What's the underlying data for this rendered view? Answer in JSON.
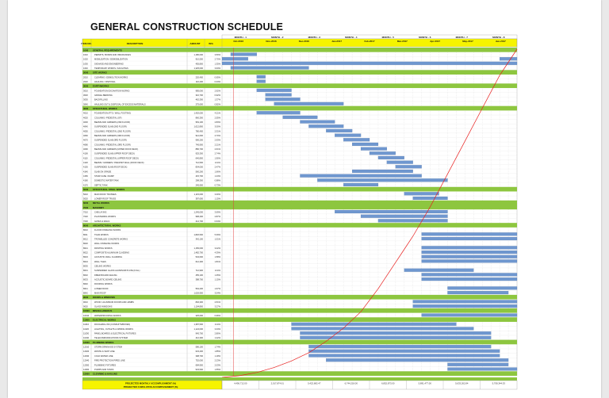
{
  "page": {
    "title": "GENERAL CONSTRUCTION SCHEDULE"
  },
  "chart_data": {
    "type": "gantt",
    "title": "GENERAL CONSTRUCTION SCHEDULE",
    "columns": {
      "item": "ITEM NO.",
      "description": "DESCRIPTION",
      "amount": "AMOUNT",
      "weight": "W%"
    },
    "months": [
      "MONTH - 1",
      "MONTH - 2",
      "MONTH - 3",
      "MONTH - 4",
      "MONTH - 5",
      "MONTH - 6",
      "MONTH - 7",
      "MONTH - 8"
    ],
    "periods": [
      "Oct-2016",
      "Nov-2016",
      "Dec-2016",
      "Jan-2017",
      "Feb-2017",
      "Mar-2017",
      "Apr-2017",
      "May-2017",
      "Jun-2017"
    ],
    "timeline_weeks": 34,
    "planned_curve": [
      [
        0,
        0
      ],
      [
        2,
        0.5
      ],
      [
        4,
        1.5
      ],
      [
        6,
        3
      ],
      [
        8,
        5
      ],
      [
        10,
        7.5
      ],
      [
        12,
        11
      ],
      [
        14,
        15
      ],
      [
        16,
        20
      ],
      [
        18,
        27
      ],
      [
        20,
        35
      ],
      [
        22,
        43
      ],
      [
        24,
        52
      ],
      [
        26,
        62
      ],
      [
        28,
        72
      ],
      [
        30,
        82
      ],
      [
        32,
        92
      ],
      [
        34,
        100
      ]
    ],
    "footer": {
      "labels": [
        "PROJECTED MONTHLY ACCOMPLISHMENT (%)",
        "PROJECTED CUMULATIVE ACCOMPLISHMENT (%)"
      ],
      "monthly": [
        "4,456,712.00",
        "2,017,874.61",
        "5,422,682.47",
        "6,744,218.00",
        "6,852,873.00",
        "5,891,477.00",
        "5,633,262.84",
        "5,708,344.53"
      ]
    },
    "rows": [
      {
        "t": "S",
        "code": "1000",
        "desc": "GENERAL REQUIREMENTS"
      },
      {
        "t": "T",
        "code": "1010",
        "desc": "PERMITS, BONDS AND INSURANCES",
        "amt": "1,180,000",
        "w": "3.50%",
        "bars": [
          [
            1,
            3
          ]
        ]
      },
      {
        "t": "T",
        "code": "1020",
        "desc": "MOBILIZATION / DEMOBILIZATION",
        "amt": "910,500",
        "w": "2.70%",
        "bars": [
          [
            0,
            2
          ],
          [
            32,
            33
          ]
        ]
      },
      {
        "t": "T",
        "code": "1030",
        "desc": "SIGNAGE AND ENGINEERING",
        "amt": "455,800",
        "w": "1.35%",
        "bars": [
          [
            0,
            33
          ]
        ]
      },
      {
        "t": "T",
        "code": "1040",
        "desc": "TEMPORARY WORKS / FACILITIES",
        "amt": "1,325,000",
        "w": "3.93%",
        "bars": [
          [
            1,
            9
          ]
        ]
      },
      {
        "t": "S",
        "code": "2000",
        "desc": "SITE WORKS"
      },
      {
        "t": "T",
        "code": "2010",
        "desc": "CLEARING / DEMOLITION WORKS",
        "amt": "220,400",
        "w": "0.65%",
        "bars": [
          [
            4,
            4
          ]
        ]
      },
      {
        "t": "T",
        "code": "2020",
        "desc": "HAULING / DISPOSAL",
        "amt": "110,200",
        "w": "0.33%",
        "bars": [
          [
            4,
            4
          ]
        ]
      },
      {
        "t": "S",
        "code": "3000",
        "desc": "EARTHWORKS"
      },
      {
        "t": "T",
        "code": "3010",
        "desc": "FOUNDATION EXCAVATION WORKS",
        "amt": "985,000",
        "w": "2.92%",
        "bars": [
          [
            4,
            7
          ]
        ]
      },
      {
        "t": "T",
        "code": "3020",
        "desc": "GRAVEL BEDDING",
        "amt": "310,700",
        "w": "0.92%",
        "bars": [
          [
            5,
            7
          ]
        ]
      },
      {
        "t": "T",
        "code": "3030",
        "desc": "BACKFILLING",
        "amt": "462,300",
        "w": "1.37%",
        "bars": [
          [
            5,
            8
          ]
        ]
      },
      {
        "t": "T",
        "code": "3040",
        "desc": "HAULING-OUT & DISPOSAL OF EXCESS MATERIALS",
        "amt": "275,600",
        "w": "0.82%",
        "bars": [
          [
            6,
            13
          ]
        ]
      },
      {
        "t": "S",
        "code": "4000",
        "desc": "STRUCTURAL WORKS"
      },
      {
        "t": "T",
        "code": "4010",
        "desc": "FOUNDATION (FTG / WALL FOOTING)",
        "amt": "1,420,000",
        "w": "4.21%",
        "bars": [
          [
            4,
            8
          ]
        ]
      },
      {
        "t": "T",
        "code": "4020",
        "desc": "COLUMNS / PEDESTAL (GF)",
        "amt": "860,300",
        "w": "2.55%",
        "bars": [
          [
            7,
            10
          ]
        ]
      },
      {
        "t": "T",
        "code": "4030",
        "desc": "BEAMS AND GIRDERS (2ND FLOOR)",
        "amt": "954,100",
        "w": "2.83%",
        "bars": [
          [
            9,
            12
          ]
        ]
      },
      {
        "t": "T",
        "code": "4040",
        "desc": "SUSPENDED SLAB (2ND FLOOR)",
        "amt": "1,012,800",
        "w": "3.00%",
        "bars": [
          [
            10,
            13
          ]
        ]
      },
      {
        "t": "T",
        "code": "4050",
        "desc": "COLUMNS / PEDESTAL (2ND FLOOR)",
        "amt": "780,400",
        "w": "2.31%",
        "bars": [
          [
            12,
            14
          ]
        ]
      },
      {
        "t": "T",
        "code": "4060",
        "desc": "BEAMS AND GIRDERS (3RD FLOOR)",
        "amt": "912,600",
        "w": "2.70%",
        "bars": [
          [
            13,
            15
          ]
        ]
      },
      {
        "t": "T",
        "code": "4070",
        "desc": "SUSPENDED SLAB (3RD FLOOR)",
        "amt": "990,200",
        "w": "2.93%",
        "bars": [
          [
            14,
            16
          ]
        ]
      },
      {
        "t": "T",
        "code": "4080",
        "desc": "COLUMNS / PEDESTAL (3RD FLOOR)",
        "amt": "745,900",
        "w": "2.21%",
        "bars": [
          [
            15,
            17
          ]
        ]
      },
      {
        "t": "T",
        "code": "4090",
        "desc": "BEAMS AND GIRDERS (UPPER ROOF DECK)",
        "amt": "880,700",
        "w": "2.61%",
        "bars": [
          [
            16,
            18
          ]
        ]
      },
      {
        "t": "T",
        "code": "4100",
        "desc": "SUSPENDED SLAB (UPPER ROOF DECK)",
        "amt": "925,300",
        "w": "2.74%",
        "bars": [
          [
            17,
            19
          ]
        ]
      },
      {
        "t": "T",
        "code": "4110",
        "desc": "COLUMNS / PEDESTAL (UPPER ROOF DECK)",
        "amt": "640,800",
        "w": "1.90%",
        "bars": [
          [
            18,
            20
          ]
        ]
      },
      {
        "t": "T",
        "code": "4120",
        "desc": "BEAMS / GIRDERS / PARAPET WALL (ROOF DECK)",
        "amt": "712,500",
        "w": "2.11%",
        "bars": [
          [
            19,
            21
          ]
        ]
      },
      {
        "t": "T",
        "code": "4130",
        "desc": "SUSPENDED SLAB (ROOF DECK)",
        "amt": "834,000",
        "w": "2.47%",
        "bars": [
          [
            20,
            22
          ]
        ]
      },
      {
        "t": "T",
        "code": "4140",
        "desc": "SLAB ON GRADE",
        "amt": "560,200",
        "w": "1.66%",
        "bars": [
          [
            15,
            21
          ]
        ]
      },
      {
        "t": "T",
        "code": "4150",
        "desc": "STAIR CASE / RAMP",
        "amt": "415,700",
        "w": "1.23%",
        "bars": [
          [
            9,
            22
          ]
        ]
      },
      {
        "t": "T",
        "code": "4160",
        "desc": "DOMESTIC WATER TANK",
        "amt": "298,300",
        "w": "0.88%",
        "bars": [
          [
            11,
            25
          ]
        ]
      },
      {
        "t": "T",
        "code": "4170",
        "desc": "SEPTIC TANK",
        "amt": "245,900",
        "w": "0.73%",
        "bars": [
          [
            14,
            17
          ]
        ]
      },
      {
        "t": "S",
        "code": "5000",
        "desc": "STRUCTURAL STEEL WORKS"
      },
      {
        "t": "T",
        "code": "5010",
        "desc": "MAIN ROOF TRUSSES",
        "amt": "1,115,000",
        "w": "3.30%",
        "bars": [
          [
            21,
            24
          ]
        ]
      },
      {
        "t": "T",
        "code": "5020",
        "desc": "LOWER ROOF TRUSS",
        "amt": "387,600",
        "w": "1.15%",
        "bars": [
          [
            22,
            25
          ]
        ]
      },
      {
        "t": "S",
        "code": "6000",
        "desc": "METAL WORKS"
      },
      {
        "t": "S",
        "code": "7000",
        "desc": "MASONRY"
      },
      {
        "t": "T",
        "code": "7010",
        "desc": "CHB LAYING",
        "amt": "1,245,000",
        "w": "3.69%",
        "bars": [
          [
            13,
            25
          ]
        ]
      },
      {
        "t": "T",
        "code": "7020",
        "desc": "PLASTERING WORKS",
        "amt": "968,400",
        "w": "2.87%",
        "bars": [
          [
            16,
            25
          ]
        ]
      },
      {
        "t": "T",
        "code": "7030",
        "desc": "GATES & RAILS",
        "amt": "214,700",
        "w": "0.64%",
        "bars": [
          [
            18,
            25
          ]
        ]
      },
      {
        "t": "S",
        "code": "8000",
        "desc": "ARCHITECTURAL WORKS"
      },
      {
        "t": "T",
        "code": "8010",
        "desc": "FLOOR FINISHING WORKS",
        "amt": "",
        "w": "",
        "bars": []
      },
      {
        "t": "T",
        "code": "8011",
        "desc": "TILES WORKS",
        "amt": "1,820,500",
        "w": "5.39%",
        "bars": [
          [
            23,
            33
          ]
        ]
      },
      {
        "t": "T",
        "code": "8012",
        "desc": "TROWELLED CONCRETE WORKS",
        "amt": "342,100",
        "w": "1.01%",
        "bars": [
          [
            23,
            33
          ]
        ]
      },
      {
        "t": "T",
        "code": "8020",
        "desc": "WALL FINISHING WORKS",
        "amt": "",
        "w": "",
        "bars": []
      },
      {
        "t": "T",
        "code": "8021",
        "desc": "PAINTING WORKS",
        "amt": "1,156,000",
        "w": "3.42%",
        "bars": [
          [
            23,
            33
          ]
        ]
      },
      {
        "t": "T",
        "code": "8022",
        "desc": "COMPOSITE ALUMINUM CLADDING",
        "amt": "1,482,700",
        "w": "4.39%",
        "bars": [
          [
            23,
            33
          ]
        ]
      },
      {
        "t": "T",
        "code": "8023",
        "desc": "ACOUSTIC WALL CLADDING",
        "amt": "534,600",
        "w": "1.58%",
        "bars": [
          [
            23,
            33
          ]
        ]
      },
      {
        "t": "T",
        "code": "8024",
        "desc": "WALL TILES",
        "amt": "612,300",
        "w": "1.81%",
        "bars": [
          [
            23,
            33
          ]
        ]
      },
      {
        "t": "T",
        "code": "8030",
        "desc": "CEILING WORKS",
        "amt": "",
        "w": "",
        "bars": []
      },
      {
        "t": "T",
        "code": "8031",
        "desc": "SUSPENDED GLASS ALUMINUM PLATE (FULL)",
        "amt": "712,900",
        "w": "2.11%",
        "bars": [
          [
            21,
            28
          ]
        ]
      },
      {
        "t": "T",
        "code": "8032",
        "desc": "FIBER BOARD CEILING",
        "amt": "455,100",
        "w": "1.35%",
        "bars": [
          [
            23,
            33
          ]
        ]
      },
      {
        "t": "T",
        "code": "8033",
        "desc": "ACOUSTIC BOARD CEILING",
        "amt": "388,700",
        "w": "1.15%",
        "bars": [
          [
            23,
            33
          ]
        ]
      },
      {
        "t": "T",
        "code": "8040",
        "desc": "ROOFING WORKS",
        "amt": "",
        "w": "",
        "bars": []
      },
      {
        "t": "T",
        "code": "8041",
        "desc": "LOWER ROOF",
        "amt": "564,200",
        "w": "1.67%",
        "bars": [
          [
            26,
            33
          ]
        ]
      },
      {
        "t": "T",
        "code": "8042",
        "desc": "MAIN ROOF",
        "amt": "1,026,900",
        "w": "3.04%",
        "bars": [
          [
            26,
            32
          ]
        ]
      },
      {
        "t": "S",
        "code": "9000",
        "desc": "DOORS & WINDOWS"
      },
      {
        "t": "T",
        "code": "9010",
        "desc": "WOOD / ALUMINUM DOORS AND JAMBS",
        "amt": "846,300",
        "w": "2.51%",
        "bars": [
          [
            22,
            33
          ]
        ]
      },
      {
        "t": "T",
        "code": "9020",
        "desc": "GLASS WINDOWS",
        "amt": "1,104,800",
        "w": "3.27%",
        "bars": [
          [
            22,
            33
          ]
        ]
      },
      {
        "t": "S",
        "code": "10000",
        "desc": "MISCELLANEOUS"
      },
      {
        "t": "T",
        "code": "10010",
        "desc": "WATERPROOFING WORKS",
        "amt": "325,600",
        "w": "0.96%",
        "bars": [
          [
            23,
            33
          ]
        ]
      },
      {
        "t": "S",
        "code": "11000",
        "desc": "ELECTRICAL WORKS"
      },
      {
        "t": "T",
        "code": "11010",
        "desc": "ROUGHING-INS (CONDUITS/BOXES)",
        "amt": "1,387,500",
        "w": "4.11%",
        "bars": [
          [
            8,
            26
          ]
        ]
      },
      {
        "t": "T",
        "code": "11020",
        "desc": "LIGHTING, OUTLETS & WIRING WORKS",
        "amt": "1,124,000",
        "w": "3.33%",
        "bars": [
          [
            8,
            28
          ]
        ]
      },
      {
        "t": "T",
        "code": "11030",
        "desc": "PANEL BOARDS & ELECTRICAL FIXTURES",
        "amt": "945,700",
        "w": "2.80%",
        "bars": [
          [
            9,
            30
          ]
        ]
      },
      {
        "t": "T",
        "code": "11040",
        "desc": "TELECOMMUNICATIONS SYSTEM",
        "amt": "412,300",
        "w": "1.22%",
        "bars": [
          [
            9,
            30
          ]
        ]
      },
      {
        "t": "S",
        "code": "12000",
        "desc": "PLUMBING WORKS"
      },
      {
        "t": "T",
        "code": "12010",
        "desc": "STORM DRAINAGE SYSTEM",
        "amt": "586,100",
        "w": "1.74%",
        "bars": [
          [
            10,
            30
          ]
        ]
      },
      {
        "t": "T",
        "code": "12020",
        "desc": "WASTE & VENT LINE",
        "amt": "623,400",
        "w": "1.85%",
        "bars": [
          [
            10,
            31
          ]
        ]
      },
      {
        "t": "T",
        "code": "12030",
        "desc": "COLD WATER LINE",
        "amt": "398,700",
        "w": "1.18%",
        "bars": [
          [
            10,
            31
          ]
        ]
      },
      {
        "t": "T",
        "code": "12040",
        "desc": "FIRE PROTECTION PIPED LINE",
        "amt": "752,000",
        "w": "2.23%",
        "bars": [
          [
            12,
            32
          ]
        ]
      },
      {
        "t": "T",
        "code": "12050",
        "desc": "PLUMBING FIXTURES",
        "amt": "684,900",
        "w": "2.03%",
        "bars": [
          [
            26,
            32
          ]
        ]
      },
      {
        "t": "T",
        "code": "12060",
        "desc": "PUMPS AND TANKS",
        "amt": "523,500",
        "w": "1.55%",
        "bars": [
          [
            26,
            33
          ]
        ]
      },
      {
        "t": "S",
        "code": "13000",
        "desc": "CLEARING & HAULING"
      }
    ]
  }
}
